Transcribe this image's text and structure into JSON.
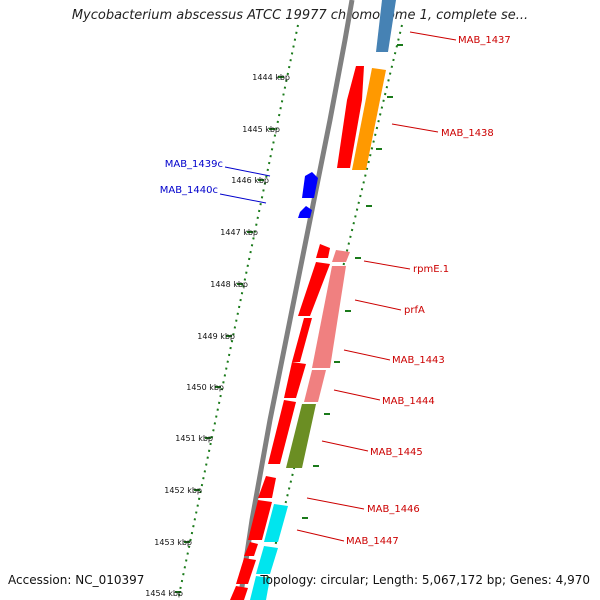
{
  "title": "Mycobacterium abscessus ATCC 19977 chromosome 1, complete se...",
  "footer": {
    "accession": "Accession: NC_010397",
    "summary": "Topology: circular; Length: 5,067,172 bp; Genes: 4,970"
  },
  "colors": {
    "backbone": "#808080",
    "tick": "#1a7a1a",
    "forward_label": "#cc0000",
    "reverse_label": "#0000cc",
    "red": "#ff0000",
    "orange": "#ff9900",
    "pink": "#f08080",
    "olive": "#6b8e23",
    "cyan": "#00e5ee",
    "steelblue": "#4682b4",
    "blue": "#0000ff"
  },
  "kbp_ticks": [
    "1444 kbp",
    "1445 kbp",
    "1446 kbp",
    "1447 kbp",
    "1448 kbp",
    "1449 kbp",
    "1450 kbp",
    "1451 kbp",
    "1452 kbp",
    "1453 kbp",
    "1454 kbp"
  ],
  "forward_labels": [
    "MAB_1437",
    "MAB_1438",
    "rpmE.1",
    "prfA",
    "MAB_1443",
    "MAB_1444",
    "MAB_1445",
    "MAB_1446",
    "MAB_1447"
  ],
  "reverse_labels": [
    "MAB_1439c",
    "MAB_1440c"
  ]
}
